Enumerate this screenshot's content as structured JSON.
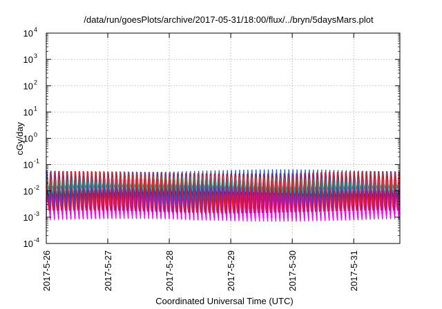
{
  "chart_data": {
    "type": "line",
    "title": "/data/run/goesPlots/archive/2017-05-31/18:00/flux/../bryn/5daysMars.plot",
    "xlabel": "Coordinated Universal Time (UTC)",
    "ylabel": "cGy/day",
    "yscale": "log",
    "ylim": [
      0.0001,
      10000
    ],
    "xlim": [
      "2017-05-26T00:00",
      "2017-05-31T18:00"
    ],
    "x_ticks": [
      "2017-5-26",
      "2017-5-27",
      "2017-5-28",
      "2017-5-29",
      "2017-5-30",
      "2017-5-31"
    ],
    "y_ticks": [
      {
        "base": "10",
        "exp": "-4"
      },
      {
        "base": "10",
        "exp": "-3"
      },
      {
        "base": "10",
        "exp": "-2"
      },
      {
        "base": "10",
        "exp": "-1"
      },
      {
        "base": "10",
        "exp": "0"
      },
      {
        "base": "10",
        "exp": "1"
      },
      {
        "base": "10",
        "exp": "2"
      },
      {
        "base": "10",
        "exp": "3"
      },
      {
        "base": "10",
        "exp": "4"
      }
    ],
    "grid": true,
    "oscillation_period_hours": 1.6,
    "series": [
      {
        "color": "#ff00ff",
        "peak": 0.035,
        "trough": 0.0008
      },
      {
        "color": "#cc00cc",
        "peak": 0.03,
        "trough": 0.0012
      },
      {
        "color": "#aa00aa",
        "peak": 0.025,
        "trough": 0.0018
      },
      {
        "color": "#2255dd",
        "peak": 0.07,
        "trough": 0.003
      },
      {
        "color": "#1133bb",
        "peak": 0.06,
        "trough": 0.005
      },
      {
        "color": "#00ccdd",
        "peak": 0.045,
        "trough": 0.008
      },
      {
        "color": "#11aa99",
        "peak": 0.035,
        "trough": 0.012
      },
      {
        "color": "#dd2222",
        "peak": 0.08,
        "trough": 0.0015
      }
    ]
  }
}
